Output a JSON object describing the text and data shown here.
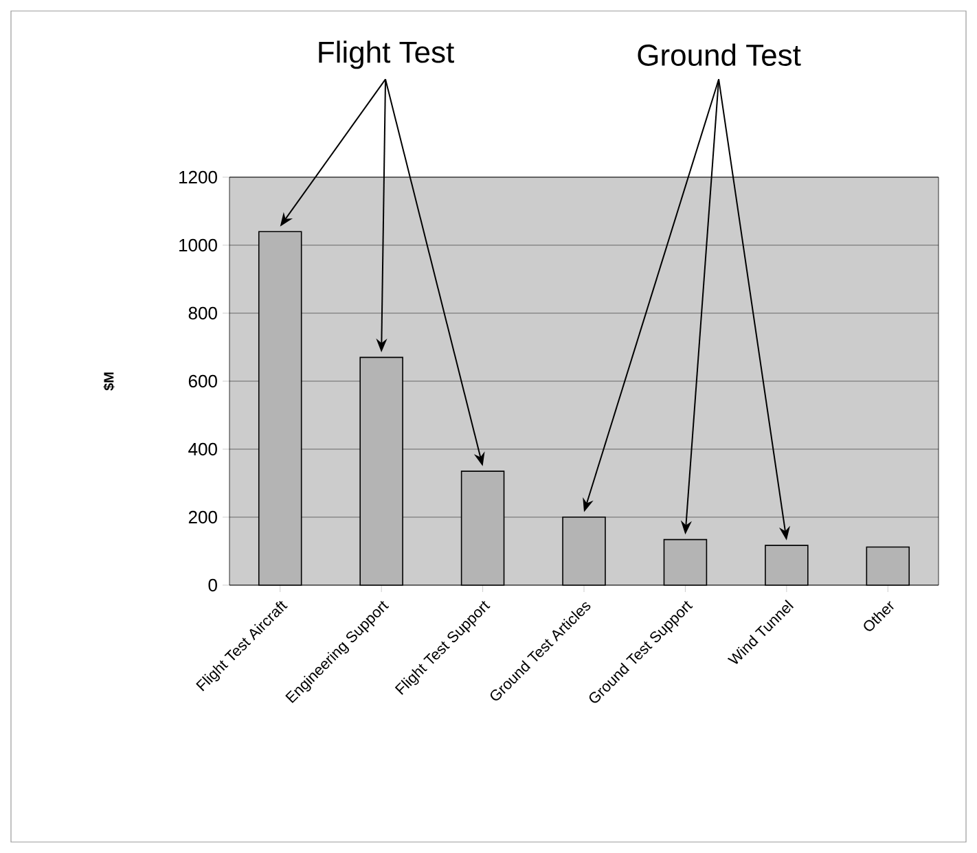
{
  "chart_data": {
    "type": "bar",
    "ylabel": "$M",
    "categories": [
      "Flight Test Aircraft",
      "Engineering Support",
      "Flight Test Support",
      "Ground Test Articles",
      "Ground Test Support",
      "Wind Tunnel",
      "Other"
    ],
    "values": [
      1040,
      670,
      335,
      200,
      134,
      117,
      112
    ],
    "color": "#b4b4b4",
    "ylim": [
      0,
      1200
    ],
    "yticks": [
      0,
      200,
      400,
      600,
      800,
      1000,
      1200
    ],
    "grid": "y",
    "annotations": [
      "Flight Test",
      "Ground Test"
    ]
  }
}
